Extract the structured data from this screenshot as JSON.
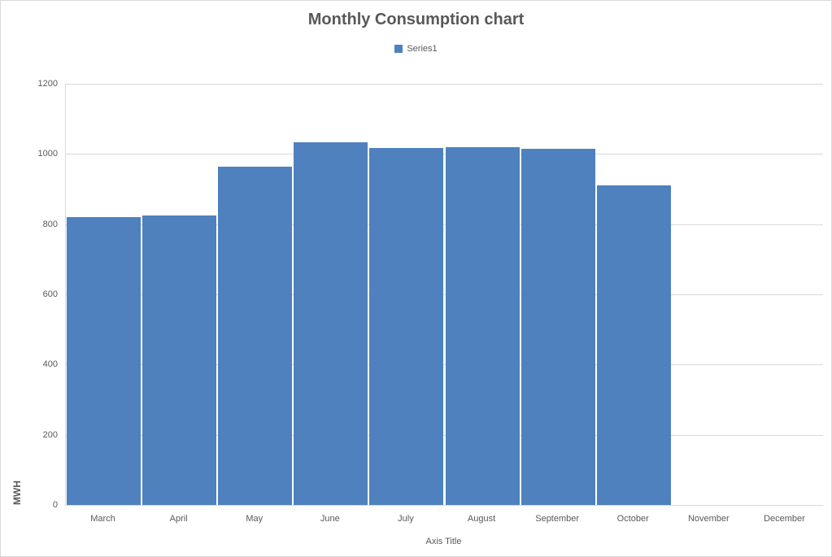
{
  "title": "Monthly Consumption chart",
  "legend": {
    "items": [
      {
        "label": "Series1",
        "color": "#4E81BD"
      }
    ]
  },
  "colors": {
    "bar": "#4E81BD",
    "gridline": "#D9D9D9",
    "axis_text": "#595959",
    "title_text": "#595959",
    "chart_border": "#D9D9D9"
  },
  "chart_data": {
    "type": "bar",
    "title": "Monthly Consumption chart",
    "xlabel": "Axis Title",
    "ylabel": "MWH",
    "categories": [
      "March",
      "April",
      "May",
      "June",
      "July",
      "August",
      "September",
      "October",
      "November",
      "December"
    ],
    "series": [
      {
        "name": "Series1",
        "values": [
          820,
          824,
          963,
          1034,
          1017,
          1020,
          1014,
          911,
          null,
          null
        ]
      }
    ],
    "ylim": [
      0,
      1200
    ],
    "y_ticks": [
      0,
      200,
      400,
      600,
      800,
      1000,
      1200
    ],
    "grid": true,
    "legend_position": "top",
    "bar_color": "#4E81BD"
  }
}
